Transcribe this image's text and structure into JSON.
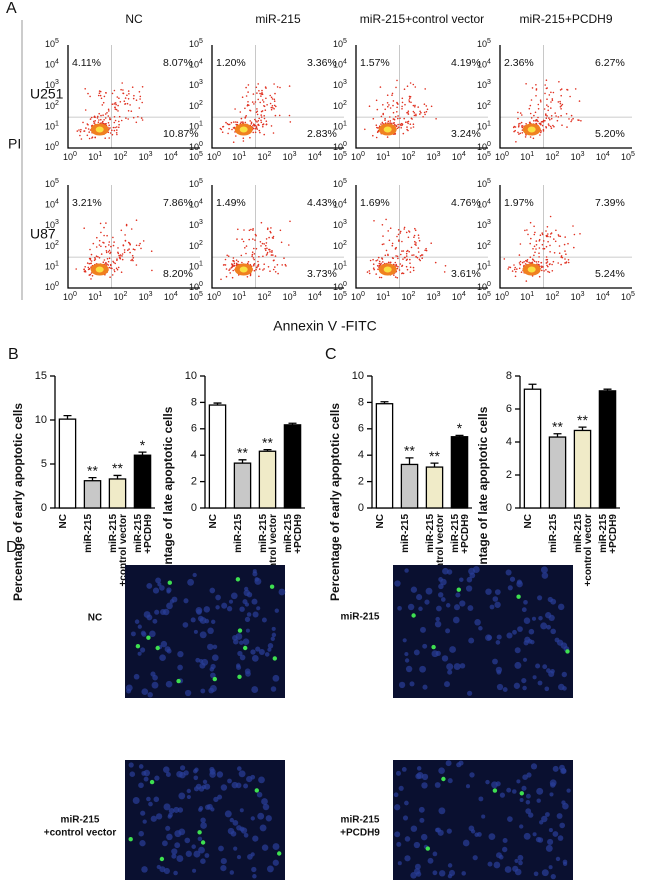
{
  "panel_a": {
    "label": "A",
    "columns": [
      "NC",
      "miR-215",
      "miR-215+control vector",
      "miR-215+PCDH9"
    ],
    "rows": [
      {
        "name": "U251",
        "quadrants": [
          [
            "4.11%",
            "8.07%",
            "10.87%"
          ],
          [
            "1.20%",
            "3.36%",
            "2.83%"
          ],
          [
            "1.57%",
            "4.19%",
            "3.24%"
          ],
          [
            "2.36%",
            "6.27%",
            "5.20%"
          ]
        ]
      },
      {
        "name": "U87",
        "quadrants": [
          [
            "3.21%",
            "7.86%",
            "8.20%"
          ],
          [
            "1.49%",
            "4.43%",
            "3.73%"
          ],
          [
            "1.69%",
            "4.76%",
            "3.61%"
          ],
          [
            "1.97%",
            "7.39%",
            "5.24%"
          ]
        ]
      }
    ],
    "y_label": "PI",
    "x_label": "Annexin V -FITC",
    "tick_base": "10",
    "tick_exponents": [
      "0",
      "1",
      "2",
      "3",
      "4",
      "5"
    ]
  },
  "chart_data": [
    {
      "type": "bar",
      "panel_label": "B",
      "ylabel": "Percentage of early apoptotic cells",
      "categories": [
        [
          "NC"
        ],
        [
          "miR-215"
        ],
        [
          "miR-215",
          "+control vector"
        ],
        [
          "miR-215",
          "+PCDH9"
        ]
      ],
      "values": [
        10.1,
        3.1,
        3.3,
        6.0
      ],
      "errors": [
        0.4,
        0.35,
        0.4,
        0.35
      ],
      "colors": [
        "#ffffff",
        "#c8c8c8",
        "#f0ebc8",
        "#000000"
      ],
      "annotations": [
        null,
        "**",
        "**",
        "*"
      ],
      "ylim": [
        0,
        15
      ],
      "yticks": [
        0,
        5,
        10,
        15
      ]
    },
    {
      "type": "bar",
      "ylabel": "Percentage of late apoptotic cells",
      "categories": [
        [
          "NC"
        ],
        [
          "miR-215"
        ],
        [
          "miR-215",
          "+control vector"
        ],
        [
          "miR-215",
          "+PCDH9"
        ]
      ],
      "values": [
        7.8,
        3.4,
        4.3,
        6.3
      ],
      "errors": [
        0.15,
        0.25,
        0.12,
        0.12
      ],
      "colors": [
        "#ffffff",
        "#c8c8c8",
        "#f0ebc8",
        "#000000"
      ],
      "annotations": [
        null,
        "**",
        "**",
        null
      ],
      "ylim": [
        0,
        10
      ],
      "yticks": [
        0,
        2,
        4,
        6,
        8,
        10
      ]
    },
    {
      "type": "bar",
      "panel_label": "C",
      "ylabel": "Percentage of early apoptotic cells",
      "categories": [
        [
          "NC"
        ],
        [
          "miR-215"
        ],
        [
          "miR-215",
          "+control vector"
        ],
        [
          "miR-215",
          "+PCDH9"
        ]
      ],
      "values": [
        7.9,
        3.3,
        3.1,
        5.4
      ],
      "errors": [
        0.15,
        0.5,
        0.3,
        0.1
      ],
      "colors": [
        "#ffffff",
        "#c8c8c8",
        "#f0ebc8",
        "#000000"
      ],
      "annotations": [
        null,
        "**",
        "**",
        "*"
      ],
      "ylim": [
        0,
        10
      ],
      "yticks": [
        0,
        2,
        4,
        6,
        8,
        10
      ]
    },
    {
      "type": "bar",
      "ylabel": "Percentage of late apoptotic cells",
      "categories": [
        [
          "NC"
        ],
        [
          "miR-215"
        ],
        [
          "miR-215",
          "+control vector"
        ],
        [
          "miR-215",
          "+PCDH9"
        ]
      ],
      "values": [
        7.2,
        4.3,
        4.7,
        7.1
      ],
      "errors": [
        0.3,
        0.2,
        0.2,
        0.1
      ],
      "colors": [
        "#ffffff",
        "#c8c8c8",
        "#f0ebc8",
        "#000000"
      ],
      "annotations": [
        null,
        "**",
        "**",
        null
      ],
      "ylim": [
        0,
        8
      ],
      "yticks": [
        0,
        2,
        4,
        6,
        8
      ]
    }
  ],
  "panel_d": {
    "label": "D",
    "images": [
      {
        "label": [
          "NC"
        ]
      },
      {
        "label": [
          "miR-215"
        ]
      },
      {
        "label": [
          "miR-215",
          "+control vector"
        ]
      },
      {
        "label": [
          "miR-215",
          "+PCDH9"
        ]
      }
    ]
  }
}
